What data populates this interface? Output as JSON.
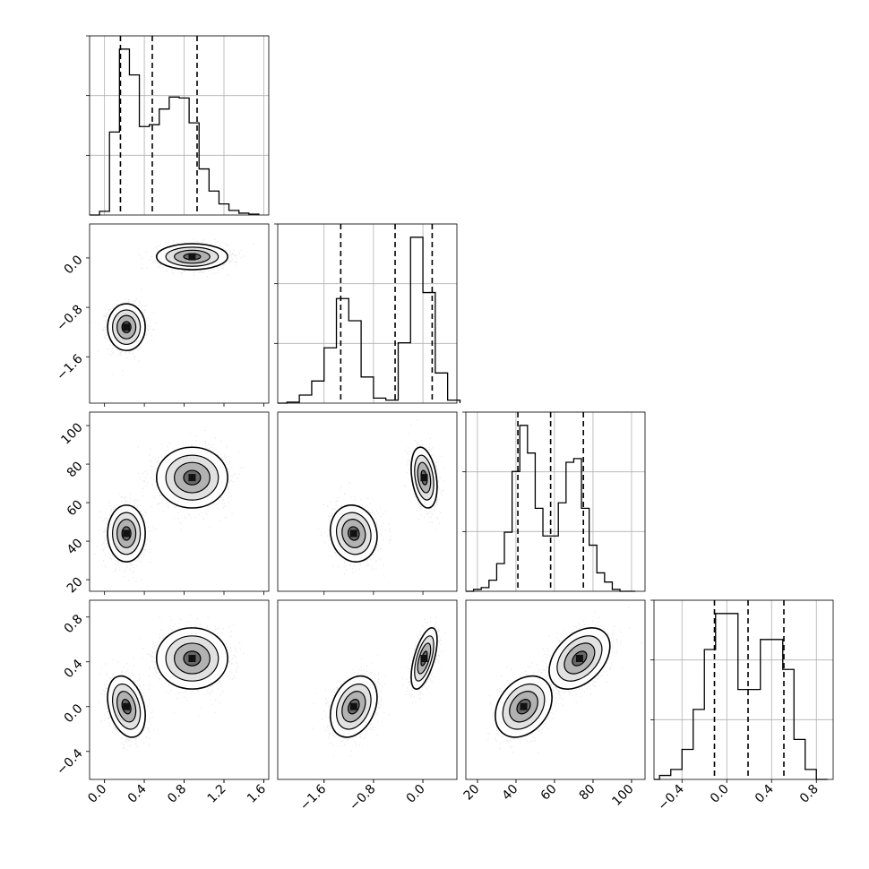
{
  "chart_data": {
    "type": "corner",
    "title": "",
    "grid": true,
    "n_params": 4,
    "params": [
      {
        "label": "",
        "range": [
          -0.15,
          1.65
        ],
        "ticks": [
          0.0,
          0.4,
          0.8,
          1.2,
          1.6
        ],
        "tick_labels": [
          "0.0",
          "0.4",
          "0.8",
          "1.2",
          "1.6"
        ],
        "quantiles": [
          0.16,
          0.48,
          0.93
        ]
      },
      {
        "label": "",
        "range": [
          -2.35,
          0.55
        ],
        "ticks": [
          -1.6,
          -0.8,
          0.0
        ],
        "tick_labels": [
          "−1.6",
          "−0.8",
          "0.0"
        ],
        "quantiles": [
          -1.33,
          -0.45,
          0.15
        ]
      },
      {
        "label": "",
        "range": [
          14,
          107
        ],
        "ticks": [
          20,
          40,
          60,
          80,
          100
        ],
        "tick_labels": [
          "20",
          "40",
          "60",
          "80",
          "100"
        ],
        "quantiles": [
          41,
          58,
          75
        ]
      },
      {
        "label": "",
        "range": [
          -0.65,
          0.95
        ],
        "ticks": [
          -0.4,
          0.0,
          0.4,
          0.8
        ],
        "tick_labels": [
          "−0.4",
          "0.0",
          "0.4",
          "0.8"
        ],
        "quantiles": [
          -0.11,
          0.19,
          0.51
        ]
      }
    ],
    "histograms": [
      {
        "bins": [
          -0.05,
          0.05,
          0.15,
          0.25,
          0.35,
          0.45,
          0.55,
          0.65,
          0.75,
          0.85,
          0.95,
          1.05,
          1.15,
          1.25,
          1.35,
          1.45
        ],
        "counts": [
          4,
          90,
          180,
          152,
          96,
          98,
          115,
          128,
          127,
          100,
          50,
          26,
          12,
          5,
          2,
          1
        ]
      },
      {
        "bins": [
          -2.2,
          -2.0,
          -1.8,
          -1.6,
          -1.4,
          -1.2,
          -1.0,
          -0.8,
          -0.6,
          -0.4,
          -0.2,
          0.0,
          0.2,
          0.4
        ],
        "counts": [
          1,
          8,
          22,
          55,
          104,
          82,
          26,
          5,
          3,
          60,
          165,
          110,
          30,
          3
        ]
      },
      {
        "bins": [
          18,
          22,
          26,
          30,
          34,
          38,
          42,
          46,
          50,
          54,
          58,
          62,
          66,
          70,
          74,
          78,
          82,
          86,
          90,
          94,
          98
        ],
        "counts": [
          1,
          2,
          6,
          15,
          32,
          65,
          90,
          75,
          45,
          30,
          30,
          48,
          70,
          72,
          45,
          25,
          10,
          5,
          1,
          0,
          0
        ]
      },
      {
        "bins": [
          -0.6,
          -0.5,
          -0.4,
          -0.3,
          -0.2,
          -0.1,
          0.0,
          0.1,
          0.2,
          0.3,
          0.4,
          0.5,
          0.6,
          0.7,
          0.8
        ],
        "counts": [
          2,
          5,
          15,
          35,
          65,
          83,
          83,
          45,
          45,
          70,
          70,
          55,
          20,
          5,
          0
        ]
      }
    ],
    "clusters": [
      {
        "weight": 0.5,
        "mean": [
          0.22,
          -1.12,
          44.0,
          0.0
        ],
        "sd": [
          0.09,
          0.18,
          7.0,
          0.13
        ],
        "corr": {
          "0-1": 0.0,
          "0-2": 0.0,
          "1-2": -0.1,
          "0-3": -0.3,
          "1-3": 0.3,
          "2-3": 0.3
        }
      },
      {
        "weight": 0.5,
        "mean": [
          0.88,
          0.02,
          73.0,
          0.43
        ],
        "sd": [
          0.17,
          0.1,
          7.5,
          0.13
        ],
        "corr": {
          "0-1": 0.0,
          "0-2": 0.0,
          "1-2": -0.3,
          "0-3": 0.0,
          "1-3": 0.6,
          "2-3": 0.4
        }
      }
    ]
  }
}
